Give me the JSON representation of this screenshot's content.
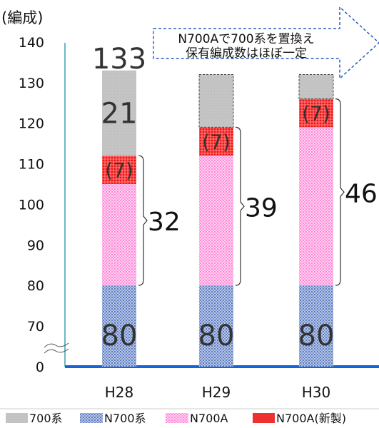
{
  "chart_data": {
    "type": "bar",
    "stacked": true,
    "unit_label": "(編成)",
    "categories": [
      "H28",
      "H29",
      "H30"
    ],
    "series": [
      {
        "name": "N700系",
        "values": [
          80,
          80,
          80
        ],
        "color": "#8ea4d2"
      },
      {
        "name": "N700A",
        "values": [
          25,
          32,
          39
        ],
        "color": "#ff99dd"
      },
      {
        "name": "N700A(新製)",
        "values": [
          7,
          7,
          7
        ],
        "color": "#ff3c3c"
      },
      {
        "name": "700系",
        "values": [
          21,
          13,
          6
        ],
        "color": "#c0c0c0"
      }
    ],
    "y_axis": {
      "range": [
        0,
        140
      ],
      "axis_break": true,
      "ticks": [
        0,
        70,
        80,
        90,
        100,
        110,
        120,
        130,
        140
      ]
    },
    "data_labels": {
      "n700": [
        "80",
        "80",
        "80"
      ],
      "new_build": [
        "(7)",
        "(7)",
        "(7)"
      ],
      "old_700": [
        "21",
        "",
        ""
      ],
      "total": [
        "133",
        "",
        ""
      ]
    },
    "brackets": [
      "32",
      "39",
      "46"
    ],
    "callout": {
      "line1": "N700Aで700系を置換え",
      "line2": "保有編成数はほぼ一定"
    },
    "legend": [
      "700系",
      "N700系",
      "N700A",
      "N700A(新製)"
    ]
  }
}
